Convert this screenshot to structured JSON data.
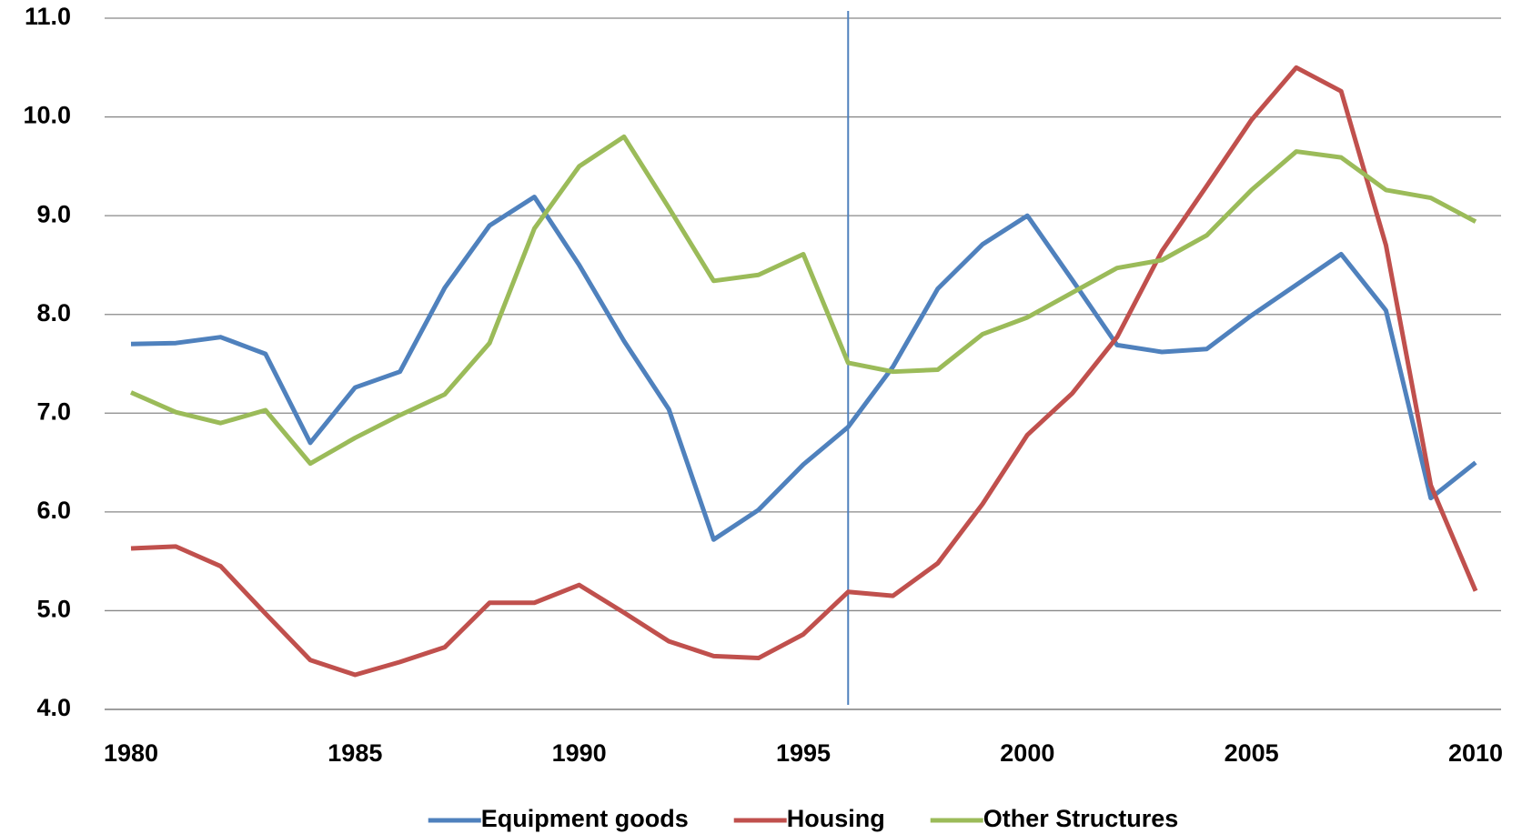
{
  "chart_data": {
    "type": "line",
    "x": [
      1980,
      1981,
      1982,
      1983,
      1984,
      1985,
      1986,
      1987,
      1988,
      1989,
      1990,
      1991,
      1992,
      1993,
      1994,
      1995,
      1996,
      1997,
      1998,
      1999,
      2000,
      2001,
      2002,
      2003,
      2004,
      2005,
      2006,
      2007,
      2008,
      2009,
      2010
    ],
    "series": [
      {
        "name": "Equipment goods",
        "color": "#4f81bd",
        "values": [
          7.7,
          7.71,
          7.77,
          7.6,
          6.7,
          7.26,
          7.42,
          8.27,
          8.9,
          9.19,
          8.5,
          7.73,
          7.04,
          5.72,
          6.02,
          6.48,
          6.86,
          7.47,
          8.26,
          8.71,
          9.0,
          8.35,
          7.69,
          7.62,
          7.65,
          7.99,
          8.3,
          8.61,
          8.04,
          6.14,
          6.5
        ]
      },
      {
        "name": "Housing",
        "color": "#c0504d",
        "values": [
          5.63,
          5.65,
          5.45,
          4.97,
          4.5,
          4.35,
          4.48,
          4.63,
          5.08,
          5.08,
          5.26,
          4.98,
          4.69,
          4.54,
          4.52,
          4.76,
          5.19,
          5.15,
          5.48,
          6.08,
          6.78,
          7.2,
          7.77,
          8.64,
          9.3,
          9.97,
          10.5,
          10.26,
          8.7,
          6.27,
          5.2
        ]
      },
      {
        "name": "Other Structures",
        "color": "#9bbb59",
        "values": [
          7.21,
          7.01,
          6.9,
          7.03,
          6.49,
          6.75,
          6.98,
          7.19,
          7.71,
          8.87,
          9.5,
          9.8,
          9.08,
          8.34,
          8.4,
          8.61,
          7.51,
          7.42,
          7.44,
          7.8,
          7.97,
          8.22,
          8.47,
          8.55,
          8.8,
          9.26,
          9.65,
          9.59,
          9.26,
          9.18,
          8.94
        ]
      }
    ],
    "xlim": [
      1980,
      2010
    ],
    "xticks": [
      1980,
      1985,
      1990,
      1995,
      2000,
      2005,
      2010
    ],
    "ylim": [
      4,
      11
    ],
    "yticks": [
      {
        "value": 4,
        "label": "4.0"
      },
      {
        "value": 5,
        "label": "5.0"
      },
      {
        "value": 6,
        "label": "6.0"
      },
      {
        "value": 7,
        "label": "7.0"
      },
      {
        "value": 8,
        "label": "8.0"
      },
      {
        "value": 9,
        "label": "9.0"
      },
      {
        "value": 10,
        "label": "10.0"
      },
      {
        "value": 11,
        "label": "11.0"
      }
    ],
    "grid": true,
    "legend": "bottom",
    "vline": 1996
  }
}
